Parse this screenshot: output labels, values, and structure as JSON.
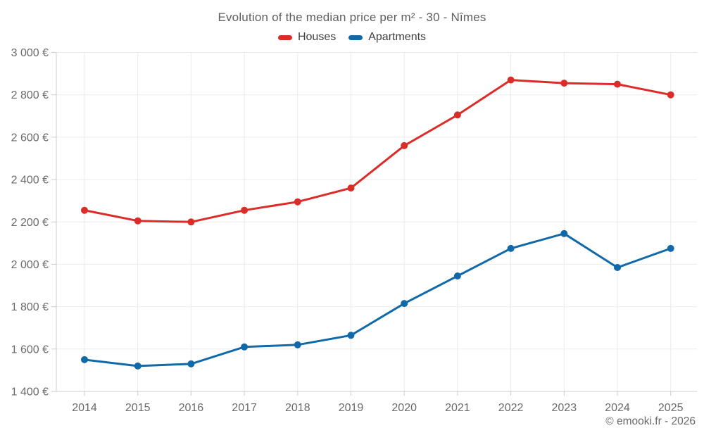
{
  "chart_data": {
    "type": "line",
    "title": "Evolution of the median price per m² - 30 - Nîmes",
    "footer": "© emooki.fr - 2026",
    "legend_position": "top",
    "grid": true,
    "categories": [
      "2014",
      "2015",
      "2016",
      "2017",
      "2018",
      "2019",
      "2020",
      "2021",
      "2022",
      "2023",
      "2024",
      "2025"
    ],
    "series": [
      {
        "name": "Houses",
        "color": "#dc2c28",
        "values": [
          2255,
          2205,
          2200,
          2255,
          2295,
          2360,
          2560,
          2705,
          2870,
          2855,
          2850,
          2800
        ]
      },
      {
        "name": "Apartments",
        "color": "#1069a8",
        "values": [
          1550,
          1520,
          1530,
          1610,
          1620,
          1665,
          1815,
          1945,
          2075,
          2145,
          1985,
          2075
        ]
      }
    ],
    "ylim": [
      1400,
      3000
    ],
    "y_ticks": [
      {
        "value": 1400,
        "label": "1 400 €"
      },
      {
        "value": 1600,
        "label": "1 600 €"
      },
      {
        "value": 1800,
        "label": "1 800 €"
      },
      {
        "value": 2000,
        "label": "2 000 €"
      },
      {
        "value": 2200,
        "label": "2 200 €"
      },
      {
        "value": 2400,
        "label": "2 400 €"
      },
      {
        "value": 2600,
        "label": "2 600 €"
      },
      {
        "value": 2800,
        "label": "2 800 €"
      },
      {
        "value": 3000,
        "label": "3 000 €"
      }
    ]
  }
}
